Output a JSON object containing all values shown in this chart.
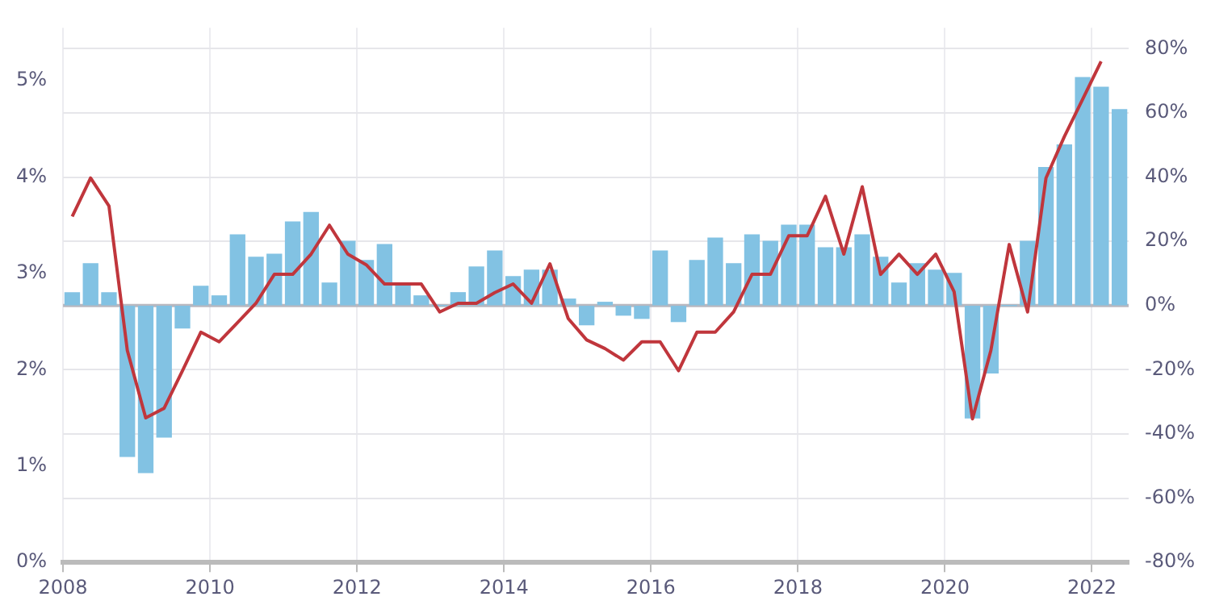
{
  "chart_data": {
    "type": "bar",
    "x": [
      2008.125,
      2008.375,
      2008.625,
      2008.875,
      2009.125,
      2009.375,
      2009.625,
      2009.875,
      2010.125,
      2010.375,
      2010.625,
      2010.875,
      2011.125,
      2011.375,
      2011.625,
      2011.875,
      2012.125,
      2012.375,
      2012.625,
      2012.875,
      2013.125,
      2013.375,
      2013.625,
      2013.875,
      2014.125,
      2014.375,
      2014.625,
      2014.875,
      2015.125,
      2015.375,
      2015.625,
      2015.875,
      2016.125,
      2016.375,
      2016.625,
      2016.875,
      2017.125,
      2017.375,
      2017.625,
      2017.875,
      2018.125,
      2018.375,
      2018.625,
      2018.875,
      2019.125,
      2019.375,
      2019.625,
      2019.875,
      2020.125,
      2020.375,
      2020.625,
      2020.875,
      2021.125,
      2021.375,
      2021.625,
      2021.875,
      2022.125,
      2022.375
    ],
    "series": [
      {
        "axis": "y2",
        "color": "#82c2e3",
        "values": [
          4,
          13,
          4,
          -47,
          -52,
          -41,
          -7,
          6,
          3,
          22,
          15,
          16,
          26,
          29,
          7,
          20,
          14,
          19,
          7,
          3,
          0,
          4,
          12,
          17,
          9,
          11,
          11,
          2,
          -6,
          1,
          -3,
          -4,
          17,
          -5,
          14,
          21,
          13,
          22,
          20,
          25,
          25,
          18,
          18,
          22,
          15,
          7,
          13,
          11,
          10,
          -35,
          -21,
          0,
          20,
          43,
          50,
          71,
          68,
          61
        ]
      },
      {
        "type": "line",
        "axis": "y",
        "color": "#c0363c",
        "values": [
          3.59,
          3.99,
          3.7,
          2.2,
          1.5,
          1.6,
          1.99,
          2.39,
          2.29,
          2.49,
          2.69,
          2.99,
          2.99,
          3.2,
          3.5,
          3.2,
          3.09,
          2.89,
          2.89,
          2.89,
          2.6,
          2.69,
          2.69,
          2.8,
          2.89,
          2.69,
          3.1,
          2.53,
          2.31,
          2.22,
          2.1,
          2.29,
          2.29,
          1.99,
          2.39,
          2.39,
          2.6,
          2.99,
          2.99,
          3.39,
          3.39,
          3.8,
          3.2,
          3.9,
          2.99,
          3.2,
          2.99,
          3.2,
          2.81,
          1.49,
          2.2,
          3.3,
          2.6,
          3.99,
          4.42,
          4.81,
          5.2,
          null
        ]
      }
    ],
    "xlim": [
      2008,
      2022.5
    ],
    "xticks": [
      2008,
      2010,
      2012,
      2014,
      2016,
      2018,
      2020,
      2022
    ],
    "ylim": [
      0,
      5.55
    ],
    "yticks": [
      {
        "value": 0,
        "label": "0%"
      },
      {
        "value": 1,
        "label": "1%"
      },
      {
        "value": 2,
        "label": "2%"
      },
      {
        "value": 3,
        "label": "3%"
      },
      {
        "value": 4,
        "label": "4%"
      },
      {
        "value": 5,
        "label": "5%"
      }
    ],
    "y2lim": [
      -80,
      86.5
    ],
    "y2ticks": [
      {
        "value": -80,
        "label": "-80%"
      },
      {
        "value": -60,
        "label": "-60%"
      },
      {
        "value": -40,
        "label": "-40%"
      },
      {
        "value": -20,
        "label": "-20%"
      },
      {
        "value": 0,
        "label": "0%"
      },
      {
        "value": 20,
        "label": "20%"
      },
      {
        "value": 40,
        "label": "40%"
      },
      {
        "value": 60,
        "label": "60%"
      },
      {
        "value": 80,
        "label": "80%"
      }
    ],
    "grid": true,
    "marker": "none",
    "legend": false
  }
}
